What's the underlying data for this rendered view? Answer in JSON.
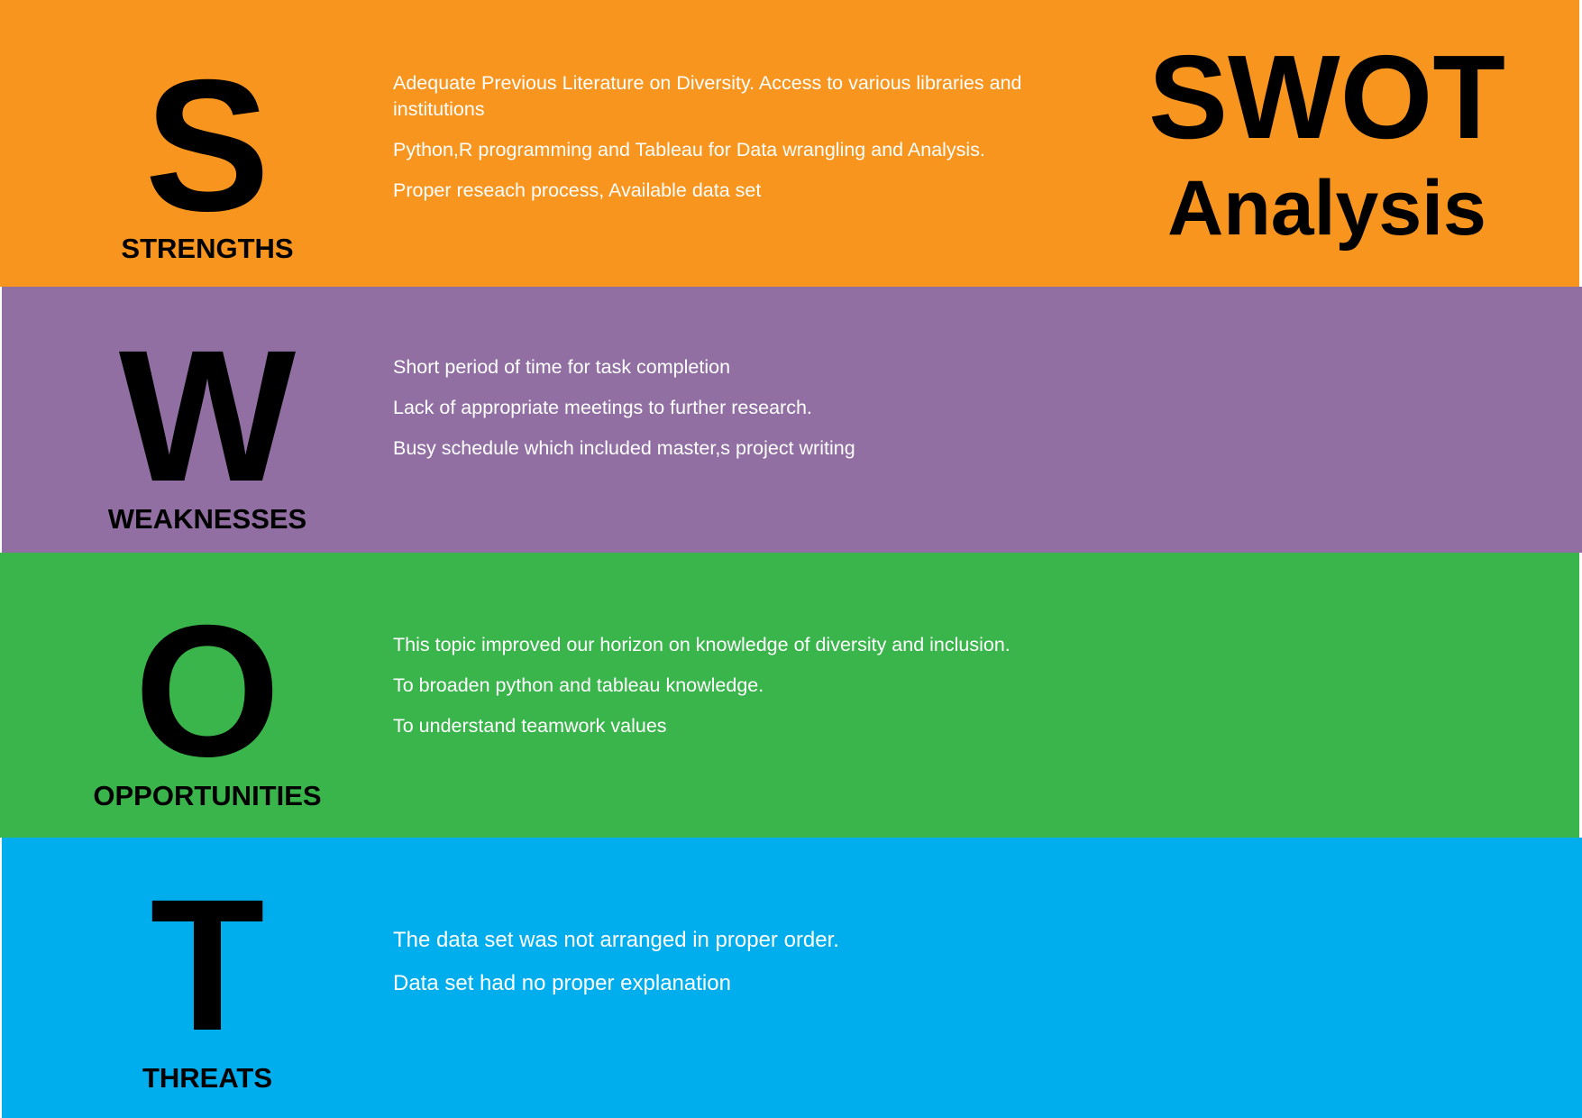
{
  "title": {
    "main": "SWOT",
    "sub": "Analysis"
  },
  "colors": {
    "strengths": "#F7951E",
    "weaknesses": "#916FA2",
    "opportunities": "#3AB54B",
    "threats": "#00AEEE",
    "text_light": "#FFFFFF",
    "text_dark": "#000000"
  },
  "sections": {
    "strengths": {
      "letter": "S",
      "label": "STRENGTHS",
      "points": [
        "Adequate Previous Literature on Diversity. Access to various libraries and institutions",
        "Python,R programming and Tableau for Data wrangling and Analysis.",
        "Proper reseach process, Available data set"
      ]
    },
    "weaknesses": {
      "letter": "W",
      "label": "WEAKNESSES",
      "points": [
        "Short period of time for task completion",
        "Lack of appropriate meetings to further research.",
        "Busy schedule which included master,s project writing"
      ]
    },
    "opportunities": {
      "letter": "O",
      "label": "OPPORTUNITIES",
      "points": [
        "This topic improved our horizon on knowledge of diversity and inclusion.",
        "To broaden python and tableau knowledge.",
        "To understand teamwork values"
      ]
    },
    "threats": {
      "letter": "T",
      "label": "THREATS",
      "points": [
        "The data set was not arranged in proper order.",
        "Data set had no proper explanation"
      ]
    }
  }
}
